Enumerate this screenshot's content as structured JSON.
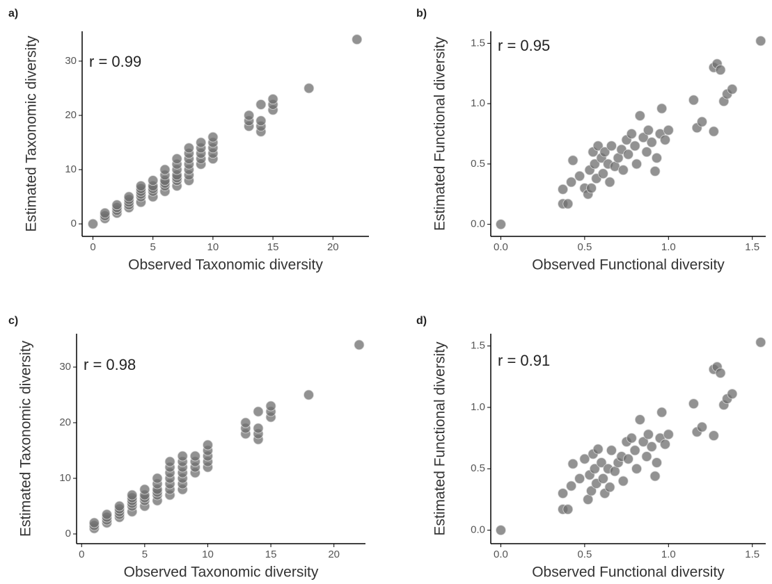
{
  "chart_data": [
    {
      "type": "scatter",
      "panel_label": "a)",
      "annotation": "r = 0.99",
      "x_label": "Observed Taxonomic diversity",
      "y_label": "Estimated Taxonomic diversity",
      "color": "#6e6e6e",
      "x": [
        0,
        1,
        1,
        1,
        2,
        2,
        2,
        2,
        3,
        3,
        3,
        3,
        3,
        4,
        4,
        4,
        4,
        4,
        4,
        5,
        5,
        5,
        5,
        5,
        6,
        6,
        6,
        6,
        6,
        6,
        7,
        7,
        7,
        7,
        7,
        7,
        7,
        8,
        8,
        8,
        8,
        8,
        8,
        8,
        9,
        9,
        9,
        9,
        9,
        10,
        10,
        10,
        10,
        10,
        13,
        13,
        13,
        14,
        14,
        14,
        14,
        15,
        15,
        15,
        18,
        22
      ],
      "values": [
        0,
        1,
        1.5,
        2,
        2,
        2.5,
        3,
        3.5,
        3,
        3.5,
        4,
        4.5,
        5,
        4,
        5,
        5.5,
        6,
        6.5,
        7,
        5,
        6,
        6.5,
        7,
        8,
        6,
        7,
        7.5,
        8,
        9,
        10,
        7,
        8,
        8.5,
        9,
        10,
        11,
        12,
        8,
        9,
        10,
        11,
        12,
        13,
        14,
        11,
        12,
        13,
        14,
        15,
        12,
        13,
        14,
        15,
        16,
        18,
        19,
        20,
        17,
        18,
        19,
        22,
        21,
        22,
        23,
        25,
        34
      ],
      "xlim": [
        -0.9,
        23
      ],
      "ylim": [
        -2.3,
        35.5
      ],
      "xticks": [
        0,
        5,
        10,
        15,
        20
      ],
      "yticks": [
        0,
        10,
        20,
        30
      ]
    },
    {
      "type": "scatter",
      "panel_label": "b)",
      "annotation": "r = 0.95",
      "x_label": "Observed Functional diversity",
      "y_label": "Estimated Functional diversity",
      "color": "#6e6e6e",
      "x": [
        0,
        0.37,
        0.37,
        0.4,
        0.42,
        0.43,
        0.47,
        0.5,
        0.52,
        0.53,
        0.54,
        0.55,
        0.56,
        0.57,
        0.58,
        0.6,
        0.61,
        0.62,
        0.64,
        0.65,
        0.66,
        0.68,
        0.7,
        0.72,
        0.73,
        0.75,
        0.76,
        0.78,
        0.8,
        0.81,
        0.83,
        0.85,
        0.87,
        0.88,
        0.9,
        0.92,
        0.93,
        0.95,
        0.96,
        0.98,
        1.0,
        1.15,
        1.17,
        1.2,
        1.27,
        1.27,
        1.29,
        1.31,
        1.33,
        1.35,
        1.38,
        1.55
      ],
      "values": [
        0,
        0.29,
        0.17,
        0.17,
        0.35,
        0.53,
        0.4,
        0.3,
        0.25,
        0.45,
        0.3,
        0.6,
        0.5,
        0.38,
        0.65,
        0.55,
        0.42,
        0.6,
        0.5,
        0.35,
        0.65,
        0.48,
        0.55,
        0.62,
        0.45,
        0.7,
        0.58,
        0.75,
        0.65,
        0.5,
        0.9,
        0.72,
        0.6,
        0.78,
        0.68,
        0.44,
        0.55,
        0.75,
        0.96,
        0.7,
        0.78,
        1.03,
        0.8,
        0.85,
        0.77,
        1.3,
        1.33,
        1.28,
        1.02,
        1.08,
        1.12,
        1.52
      ],
      "xlim": [
        -0.06,
        1.58
      ],
      "ylim": [
        -0.1,
        1.6
      ],
      "xticks": [
        {
          "value": 0,
          "label": "0.0"
        },
        0.5,
        {
          "value": 1,
          "label": "1.0"
        },
        1.5
      ],
      "yticks": [
        {
          "value": 0,
          "label": "0.0"
        },
        0.5,
        {
          "value": 1,
          "label": "1.0"
        },
        1.5
      ]
    },
    {
      "type": "scatter",
      "panel_label": "c)",
      "annotation": "r = 0.98",
      "x_label": "Observed Taxonomic diversity",
      "y_label": "Estimated Taxonomic diversity",
      "color": "#6e6e6e",
      "x": [
        1,
        1,
        1,
        2,
        2,
        2,
        2,
        3,
        3,
        3,
        3,
        3,
        4,
        4,
        4,
        4,
        4,
        4,
        5,
        5,
        5,
        5,
        5,
        6,
        6,
        6,
        6,
        6,
        6,
        7,
        7,
        7,
        7,
        7,
        7,
        7,
        8,
        8,
        8,
        8,
        8,
        8,
        8,
        9,
        9,
        9,
        9,
        10,
        10,
        10,
        10,
        10,
        13,
        13,
        13,
        14,
        14,
        14,
        14,
        15,
        15,
        15,
        18,
        22
      ],
      "values": [
        1,
        1.5,
        2,
        2,
        2.5,
        3,
        3.5,
        3,
        3.5,
        4,
        4.5,
        5,
        4,
        5,
        5.5,
        6,
        6.5,
        7,
        5,
        6,
        6.5,
        7,
        8,
        6,
        7,
        7.5,
        8,
        9,
        10,
        7,
        8,
        9,
        10,
        11,
        12,
        13,
        8,
        9,
        10,
        11,
        12,
        13,
        14,
        11,
        12,
        13,
        14,
        12,
        13,
        14,
        15,
        16,
        18,
        19,
        20,
        17,
        18,
        19,
        22,
        21,
        22,
        23,
        25,
        34
      ],
      "xlim": [
        -0.4,
        22.5
      ],
      "ylim": [
        -1.75,
        36
      ],
      "xticks": [
        0,
        5,
        10,
        15,
        20
      ],
      "yticks": [
        0,
        10,
        20,
        30
      ]
    },
    {
      "type": "scatter",
      "panel_label": "d)",
      "annotation": "r = 0.91",
      "x_label": "Observed Functional diversity",
      "y_label": "Estimated Functional diversity",
      "color": "#6e6e6e",
      "x": [
        0,
        0.37,
        0.37,
        0.4,
        0.42,
        0.43,
        0.47,
        0.5,
        0.52,
        0.53,
        0.54,
        0.55,
        0.56,
        0.57,
        0.58,
        0.6,
        0.61,
        0.62,
        0.64,
        0.65,
        0.66,
        0.68,
        0.7,
        0.72,
        0.73,
        0.75,
        0.76,
        0.78,
        0.8,
        0.81,
        0.83,
        0.85,
        0.87,
        0.88,
        0.9,
        0.92,
        0.93,
        0.95,
        0.96,
        0.98,
        1.0,
        1.15,
        1.17,
        1.2,
        1.27,
        1.27,
        1.29,
        1.31,
        1.33,
        1.35,
        1.38,
        1.55
      ],
      "values": [
        0,
        0.3,
        0.17,
        0.17,
        0.36,
        0.54,
        0.42,
        0.58,
        0.25,
        0.45,
        0.32,
        0.62,
        0.5,
        0.38,
        0.66,
        0.55,
        0.42,
        0.3,
        0.5,
        0.35,
        0.65,
        0.48,
        0.55,
        0.6,
        0.4,
        0.72,
        0.58,
        0.75,
        0.65,
        0.5,
        0.9,
        0.72,
        0.6,
        0.78,
        0.68,
        0.44,
        0.55,
        0.75,
        0.96,
        0.7,
        0.78,
        1.03,
        0.8,
        0.84,
        0.77,
        1.31,
        1.33,
        1.28,
        1.02,
        1.07,
        1.11,
        1.53
      ],
      "xlim": [
        -0.06,
        1.58
      ],
      "ylim": [
        -0.11,
        1.6
      ],
      "xticks": [
        {
          "value": 0,
          "label": "0.0"
        },
        0.5,
        {
          "value": 1,
          "label": "1.0"
        },
        1.5
      ],
      "yticks": [
        {
          "value": 0,
          "label": "0.0"
        },
        0.5,
        {
          "value": 1,
          "label": "1.0"
        },
        1.5
      ]
    }
  ]
}
